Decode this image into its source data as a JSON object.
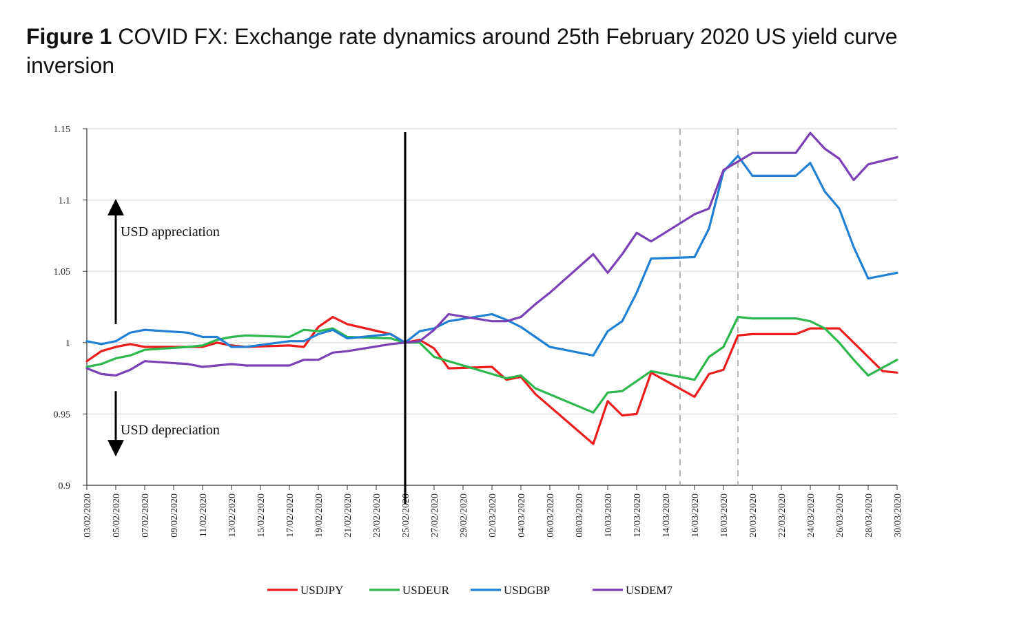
{
  "figure": {
    "label": "Figure 1",
    "title": "COVID FX: Exchange rate dynamics around 25th February 2020 US yield curve inversion"
  },
  "chart_data": {
    "type": "line",
    "title": "Figure 1 COVID FX: Exchange rate dynamics around 25th February 2020 US yield curve inversion",
    "xlabel": "",
    "ylabel": "",
    "ylim": [
      0.9,
      1.15
    ],
    "yticks": [
      0.9,
      0.95,
      1,
      1.05,
      1.1,
      1.15
    ],
    "ytick_labels": [
      "0.9",
      "0.95",
      "1",
      "1.05",
      "1.1",
      "1.15"
    ],
    "grid": "horizontal",
    "legend_position": "bottom",
    "x_tick_labels": [
      "03/02/2020",
      "05/02/2020",
      "07/02/2020",
      "09/02/2020",
      "11/02/2020",
      "13/02/2020",
      "15/02/2020",
      "17/02/2020",
      "19/02/2020",
      "21/02/2020",
      "23/02/2020",
      "25/02/2020",
      "27/02/2020",
      "29/02/2020",
      "02/03/2020",
      "04/03/2020",
      "06/03/2020",
      "08/03/2020",
      "10/03/2020",
      "12/03/2020",
      "14/03/2020",
      "16/03/2020",
      "18/03/2020",
      "20/03/2020",
      "22/03/2020",
      "24/03/2020",
      "26/03/2020",
      "28/03/2020",
      "30/03/2020"
    ],
    "event_line": {
      "date": "25/02/2020",
      "style": "solid"
    },
    "dashed_lines": [
      "15/03/2020",
      "19/03/2020"
    ],
    "annotations": [
      {
        "text": "USD appreciation",
        "arrow": "up"
      },
      {
        "text": "USD depreciation",
        "arrow": "down"
      }
    ],
    "series": [
      {
        "name": "USDJPY",
        "color": "#ee1c1c",
        "points": [
          [
            "03/02/2020",
            0.987
          ],
          [
            "04/02/2020",
            0.994
          ],
          [
            "05/02/2020",
            0.997
          ],
          [
            "06/02/2020",
            0.999
          ],
          [
            "07/02/2020",
            0.997
          ],
          [
            "10/02/2020",
            0.997
          ],
          [
            "11/02/2020",
            0.997
          ],
          [
            "12/02/2020",
            1.0
          ],
          [
            "13/02/2020",
            0.998
          ],
          [
            "14/02/2020",
            0.997
          ],
          [
            "17/02/2020",
            0.998
          ],
          [
            "18/02/2020",
            0.997
          ],
          [
            "19/02/2020",
            1.011
          ],
          [
            "20/02/2020",
            1.018
          ],
          [
            "21/02/2020",
            1.013
          ],
          [
            "24/02/2020",
            1.006
          ],
          [
            "25/02/2020",
            1.0
          ],
          [
            "26/02/2020",
            1.002
          ],
          [
            "27/02/2020",
            0.996
          ],
          [
            "28/02/2020",
            0.982
          ],
          [
            "02/03/2020",
            0.983
          ],
          [
            "03/03/2020",
            0.974
          ],
          [
            "04/03/2020",
            0.976
          ],
          [
            "05/03/2020",
            0.964
          ],
          [
            "09/03/2020",
            0.929
          ],
          [
            "10/03/2020",
            0.959
          ],
          [
            "11/03/2020",
            0.949
          ],
          [
            "12/03/2020",
            0.95
          ],
          [
            "13/03/2020",
            0.979
          ],
          [
            "16/03/2020",
            0.962
          ],
          [
            "17/03/2020",
            0.978
          ],
          [
            "18/03/2020",
            0.981
          ],
          [
            "19/03/2020",
            1.005
          ],
          [
            "20/03/2020",
            1.006
          ],
          [
            "23/03/2020",
            1.006
          ],
          [
            "24/03/2020",
            1.01
          ],
          [
            "25/03/2020",
            1.01
          ],
          [
            "26/03/2020",
            1.01
          ],
          [
            "29/03/2020",
            0.98
          ],
          [
            "30/03/2020",
            0.979
          ]
        ]
      },
      {
        "name": "USDEUR",
        "color": "#2cb84c",
        "points": [
          [
            "03/02/2020",
            0.983
          ],
          [
            "04/02/2020",
            0.985
          ],
          [
            "05/02/2020",
            0.989
          ],
          [
            "06/02/2020",
            0.991
          ],
          [
            "07/02/2020",
            0.995
          ],
          [
            "10/02/2020",
            0.997
          ],
          [
            "11/02/2020",
            0.998
          ],
          [
            "12/02/2020",
            1.002
          ],
          [
            "13/02/2020",
            1.004
          ],
          [
            "14/02/2020",
            1.005
          ],
          [
            "17/02/2020",
            1.004
          ],
          [
            "18/02/2020",
            1.009
          ],
          [
            "19/02/2020",
            1.008
          ],
          [
            "20/02/2020",
            1.01
          ],
          [
            "21/02/2020",
            1.004
          ],
          [
            "24/02/2020",
            1.003
          ],
          [
            "25/02/2020",
            1.0
          ],
          [
            "26/02/2020",
            1.0
          ],
          [
            "27/02/2020",
            0.99
          ],
          [
            "28/02/2020",
            0.987
          ],
          [
            "02/03/2020",
            0.978
          ],
          [
            "03/03/2020",
            0.975
          ],
          [
            "04/03/2020",
            0.977
          ],
          [
            "05/03/2020",
            0.968
          ],
          [
            "09/03/2020",
            0.951
          ],
          [
            "10/03/2020",
            0.965
          ],
          [
            "11/03/2020",
            0.966
          ],
          [
            "12/03/2020",
            0.973
          ],
          [
            "13/03/2020",
            0.98
          ],
          [
            "16/03/2020",
            0.974
          ],
          [
            "17/03/2020",
            0.99
          ],
          [
            "18/03/2020",
            0.997
          ],
          [
            "19/03/2020",
            1.018
          ],
          [
            "20/03/2020",
            1.017
          ],
          [
            "23/03/2020",
            1.017
          ],
          [
            "24/03/2020",
            1.015
          ],
          [
            "25/03/2020",
            1.01
          ],
          [
            "26/03/2020",
            1.0
          ],
          [
            "27/03/2020",
            0.988
          ],
          [
            "28/03/2020",
            0.977
          ],
          [
            "30/03/2020",
            0.988
          ]
        ]
      },
      {
        "name": "USDGBP",
        "color": "#1f80d4",
        "points": [
          [
            "03/02/2020",
            1.001
          ],
          [
            "04/02/2020",
            0.999
          ],
          [
            "05/02/2020",
            1.001
          ],
          [
            "06/02/2020",
            1.007
          ],
          [
            "07/02/2020",
            1.009
          ],
          [
            "10/02/2020",
            1.007
          ],
          [
            "11/02/2020",
            1.004
          ],
          [
            "12/02/2020",
            1.004
          ],
          [
            "13/02/2020",
            0.997
          ],
          [
            "14/02/2020",
            0.997
          ],
          [
            "17/02/2020",
            1.001
          ],
          [
            "18/02/2020",
            1.001
          ],
          [
            "19/02/2020",
            1.006
          ],
          [
            "20/02/2020",
            1.009
          ],
          [
            "21/02/2020",
            1.003
          ],
          [
            "24/02/2020",
            1.006
          ],
          [
            "25/02/2020",
            1.0
          ],
          [
            "26/02/2020",
            1.008
          ],
          [
            "27/02/2020",
            1.01
          ],
          [
            "28/02/2020",
            1.015
          ],
          [
            "02/03/2020",
            1.02
          ],
          [
            "03/03/2020",
            1.016
          ],
          [
            "04/03/2020",
            1.011
          ],
          [
            "05/03/2020",
            1.004
          ],
          [
            "06/03/2020",
            0.997
          ],
          [
            "09/03/2020",
            0.991
          ],
          [
            "10/03/2020",
            1.008
          ],
          [
            "11/03/2020",
            1.015
          ],
          [
            "12/03/2020",
            1.035
          ],
          [
            "13/03/2020",
            1.059
          ],
          [
            "16/03/2020",
            1.06
          ],
          [
            "17/03/2020",
            1.08
          ],
          [
            "18/03/2020",
            1.12
          ],
          [
            "19/03/2020",
            1.131
          ],
          [
            "20/03/2020",
            1.117
          ],
          [
            "23/03/2020",
            1.117
          ],
          [
            "24/03/2020",
            1.126
          ],
          [
            "25/03/2020",
            1.106
          ],
          [
            "26/03/2020",
            1.094
          ],
          [
            "27/03/2020",
            1.067
          ],
          [
            "28/03/2020",
            1.045
          ],
          [
            "30/03/2020",
            1.049
          ]
        ]
      },
      {
        "name": "USDEM7",
        "color": "#7b3fb6",
        "points": [
          [
            "03/02/2020",
            0.982
          ],
          [
            "04/02/2020",
            0.978
          ],
          [
            "05/02/2020",
            0.977
          ],
          [
            "06/02/2020",
            0.981
          ],
          [
            "07/02/2020",
            0.987
          ],
          [
            "10/02/2020",
            0.985
          ],
          [
            "11/02/2020",
            0.983
          ],
          [
            "12/02/2020",
            0.984
          ],
          [
            "13/02/2020",
            0.985
          ],
          [
            "14/02/2020",
            0.984
          ],
          [
            "17/02/2020",
            0.984
          ],
          [
            "18/02/2020",
            0.988
          ],
          [
            "19/02/2020",
            0.988
          ],
          [
            "20/02/2020",
            0.993
          ],
          [
            "21/02/2020",
            0.994
          ],
          [
            "24/02/2020",
            0.999
          ],
          [
            "25/02/2020",
            1.0
          ],
          [
            "26/02/2020",
            1.001
          ],
          [
            "27/02/2020",
            1.009
          ],
          [
            "28/02/2020",
            1.02
          ],
          [
            "02/03/2020",
            1.015
          ],
          [
            "03/03/2020",
            1.015
          ],
          [
            "04/03/2020",
            1.018
          ],
          [
            "05/03/2020",
            1.027
          ],
          [
            "06/03/2020",
            1.035
          ],
          [
            "09/03/2020",
            1.062
          ],
          [
            "10/03/2020",
            1.049
          ],
          [
            "11/03/2020",
            1.062
          ],
          [
            "12/03/2020",
            1.077
          ],
          [
            "13/03/2020",
            1.071
          ],
          [
            "16/03/2020",
            1.09
          ],
          [
            "17/03/2020",
            1.094
          ],
          [
            "18/03/2020",
            1.121
          ],
          [
            "19/03/2020",
            1.127
          ],
          [
            "20/03/2020",
            1.133
          ],
          [
            "23/03/2020",
            1.133
          ],
          [
            "24/03/2020",
            1.147
          ],
          [
            "25/03/2020",
            1.136
          ],
          [
            "26/03/2020",
            1.129
          ],
          [
            "27/03/2020",
            1.114
          ],
          [
            "28/03/2020",
            1.125
          ],
          [
            "30/03/2020",
            1.13
          ]
        ]
      }
    ]
  }
}
